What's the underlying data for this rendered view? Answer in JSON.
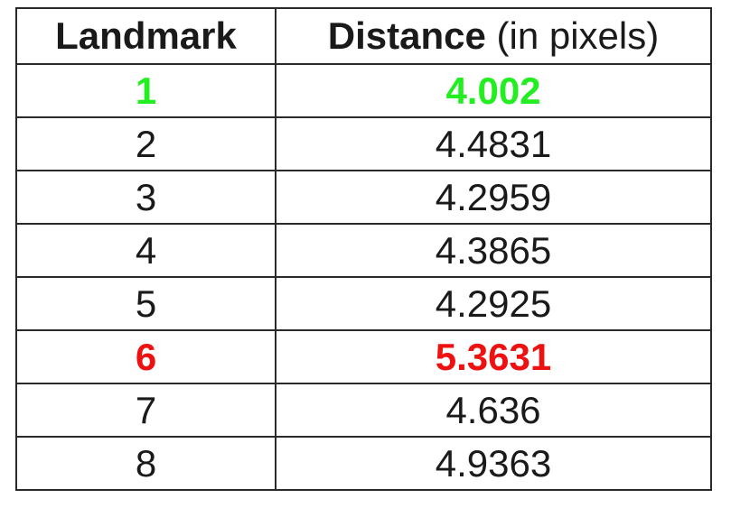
{
  "table": {
    "header": {
      "col1": "Landmark",
      "col2_main": "Distance",
      "col2_unit": "(in pixels)"
    },
    "rows": [
      {
        "landmark": "1",
        "distance": "4.002"
      },
      {
        "landmark": "2",
        "distance": "4.4831"
      },
      {
        "landmark": "3",
        "distance": "4.2959"
      },
      {
        "landmark": "4",
        "distance": "4.3865"
      },
      {
        "landmark": "5",
        "distance": "4.2925"
      },
      {
        "landmark": "6",
        "distance": "5.3631"
      },
      {
        "landmark": "7",
        "distance": "4.636"
      },
      {
        "landmark": "8",
        "distance": "4.9363"
      }
    ],
    "highlight_colors": {
      "best_row_1": "#22ee22",
      "worst_row_6": "#ee1111"
    }
  }
}
